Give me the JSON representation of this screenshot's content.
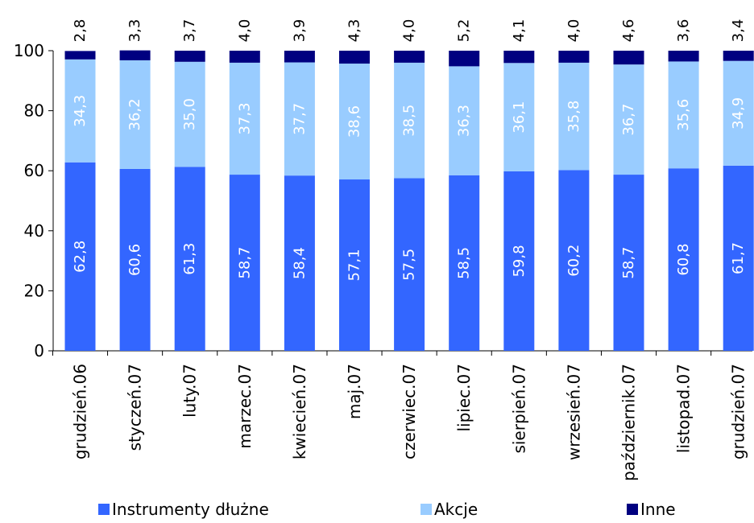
{
  "chart_data": {
    "type": "bar",
    "stacked": true,
    "categories": [
      "grudzień.06",
      "styczeń.07",
      "luty.07",
      "marzec.07",
      "kwiecień.07",
      "maj.07",
      "czerwiec.07",
      "lipiec.07",
      "sierpień.07",
      "wrzesień.07",
      "październik.07",
      "listopad.07",
      "grudzień.07"
    ],
    "series": [
      {
        "name": "Instrumenty dłużne",
        "color": "#3366ff",
        "label_color": "#ffffff",
        "values": [
          62.8,
          60.6,
          61.3,
          58.7,
          58.4,
          57.1,
          57.5,
          58.5,
          59.8,
          60.2,
          58.7,
          60.8,
          61.7
        ],
        "labels": [
          "62,8",
          "60,6",
          "61,3",
          "58,7",
          "58,4",
          "57,1",
          "57,5",
          "58,5",
          "59,8",
          "60,2",
          "58,7",
          "60,8",
          "61,7"
        ]
      },
      {
        "name": "Akcje",
        "color": "#99ccff",
        "label_color": "#ffffff",
        "values": [
          34.3,
          36.2,
          35.0,
          37.3,
          37.7,
          38.6,
          38.5,
          36.3,
          36.1,
          35.8,
          36.7,
          35.6,
          34.9
        ],
        "labels": [
          "34,3",
          "36,2",
          "35,0",
          "37,3",
          "37,7",
          "38,6",
          "38,5",
          "36,3",
          "36,1",
          "35,8",
          "36,7",
          "35,6",
          "34,9"
        ]
      },
      {
        "name": "Inne",
        "color": "#000080",
        "label_color": "#000000",
        "values": [
          2.8,
          3.3,
          3.7,
          4.0,
          3.9,
          4.3,
          4.0,
          5.2,
          4.1,
          4.0,
          4.6,
          3.6,
          3.4
        ],
        "labels": [
          "2,8",
          "3,3",
          "3,7",
          "4,0",
          "3,9",
          "4,3",
          "4,0",
          "5,2",
          "4,1",
          "4,0",
          "4,6",
          "3,6",
          "3,4"
        ]
      }
    ],
    "ylim": [
      0,
      100
    ],
    "yticks": [
      0,
      20,
      40,
      60,
      80,
      100
    ],
    "title": "",
    "xlabel": "",
    "ylabel": "",
    "grid": false,
    "legend_position": "bottom"
  }
}
